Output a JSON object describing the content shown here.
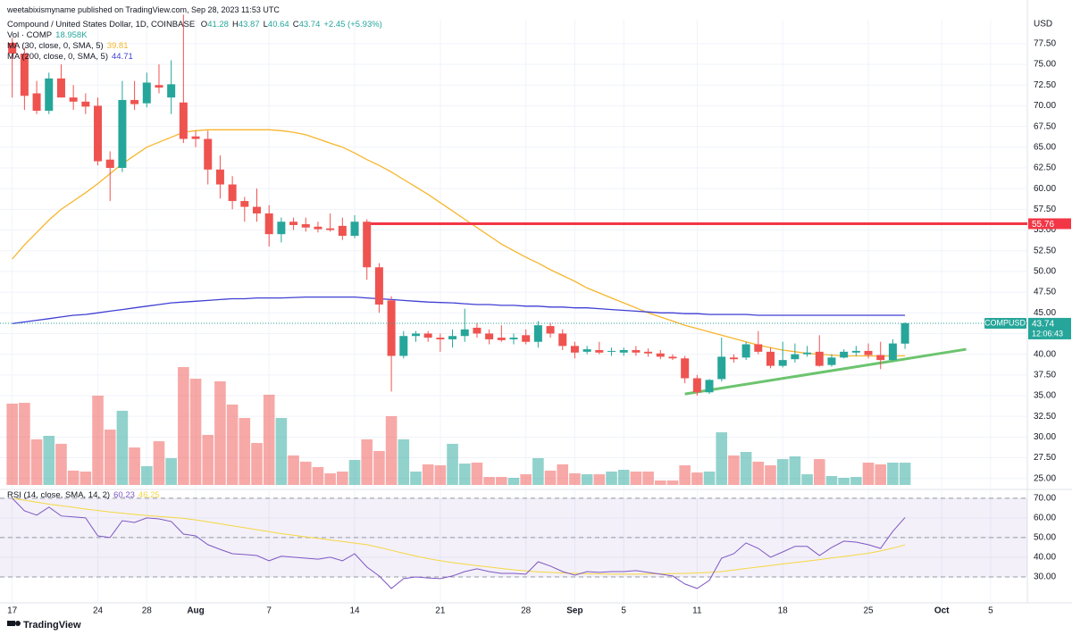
{
  "header": {
    "publisher": "weetabixismyname published on TradingView.com, Sep 28, 2023 11:53 UTC",
    "title": "Compound / United States Dollar, 1D, COINBASE",
    "ohlc": [
      {
        "label": "O",
        "value": "41.28"
      },
      {
        "label": "H",
        "value": "43.87"
      },
      {
        "label": "L",
        "value": "40.64"
      },
      {
        "label": "C",
        "value": "43.74"
      }
    ],
    "change": "+2.45 (+5.93%)"
  },
  "footer": {
    "brand": "TradingView"
  },
  "chart_data": {
    "type": "candlestick",
    "currency": "USD",
    "up_color": "#26a69a",
    "down_color": "#ef5350",
    "grid": true,
    "x": [
      "2023-07-17",
      "2023-07-18",
      "2023-07-19",
      "2023-07-20",
      "2023-07-21",
      "2023-07-22",
      "2023-07-23",
      "2023-07-24",
      "2023-07-25",
      "2023-07-26",
      "2023-07-27",
      "2023-07-28",
      "2023-07-29",
      "2023-07-30",
      "2023-07-31",
      "2023-08-01",
      "2023-08-02",
      "2023-08-03",
      "2023-08-04",
      "2023-08-05",
      "2023-08-06",
      "2023-08-07",
      "2023-08-08",
      "2023-08-09",
      "2023-08-10",
      "2023-08-11",
      "2023-08-12",
      "2023-08-13",
      "2023-08-14",
      "2023-08-15",
      "2023-08-16",
      "2023-08-17",
      "2023-08-18",
      "2023-08-19",
      "2023-08-20",
      "2023-08-21",
      "2023-08-22",
      "2023-08-23",
      "2023-08-24",
      "2023-08-25",
      "2023-08-26",
      "2023-08-27",
      "2023-08-28",
      "2023-08-29",
      "2023-08-30",
      "2023-08-31",
      "2023-09-01",
      "2023-09-02",
      "2023-09-03",
      "2023-09-04",
      "2023-09-05",
      "2023-09-06",
      "2023-09-07",
      "2023-09-08",
      "2023-09-09",
      "2023-09-10",
      "2023-09-11",
      "2023-09-12",
      "2023-09-13",
      "2023-09-14",
      "2023-09-15",
      "2023-09-16",
      "2023-09-17",
      "2023-09-18",
      "2023-09-19",
      "2023-09-20",
      "2023-09-21",
      "2023-09-22",
      "2023-09-23",
      "2023-09-24",
      "2023-09-25",
      "2023-09-26",
      "2023-09-27",
      "2023-09-28"
    ],
    "open": [
      77.6,
      76.3,
      71.5,
      69.4,
      73.3,
      71,
      70.5,
      70,
      63.5,
      62.5,
      70.7,
      70.3,
      72.5,
      71,
      70.4,
      66.3,
      66,
      62.3,
      60.5,
      58.5,
      57.8,
      57,
      54.5,
      56,
      55.7,
      55.4,
      55.2,
      55.5,
      54.3,
      56,
      50.5,
      46.5,
      39.8,
      42.2,
      42.5,
      42,
      41.8,
      42.2,
      43.2,
      42.5,
      42,
      41.8,
      42.3,
      41.5,
      43.4,
      42.5,
      41,
      40.3,
      40.5,
      40.3,
      40.2,
      40.5,
      40.3,
      40.1,
      39.7,
      39.5,
      37.1,
      35.4,
      37,
      39.6,
      39.6,
      41.2,
      40.3,
      38.6,
      39.4,
      40,
      40.3,
      38.7,
      39.6,
      40.2,
      40.4,
      39.9,
      39.3,
      41.28
    ],
    "high": [
      78.2,
      77,
      73,
      74,
      75,
      72.5,
      71.5,
      71,
      64.5,
      73,
      73,
      74,
      75,
      75.5,
      81,
      67,
      67,
      64,
      61.5,
      59,
      60,
      58,
      56.5,
      56.5,
      56.5,
      56,
      57,
      56.5,
      56.8,
      56.3,
      51,
      47,
      42.8,
      42.8,
      42.8,
      42.5,
      43,
      45.5,
      43.8,
      43,
      43.5,
      42.5,
      43,
      44,
      43.8,
      43,
      41.5,
      41,
      41.5,
      40.8,
      40.8,
      41,
      40.7,
      40.5,
      40,
      39.8,
      37.5,
      37,
      42,
      40,
      41.5,
      42.8,
      40.8,
      41.5,
      41.3,
      41,
      42.3,
      40,
      40.6,
      41,
      41.3,
      41.5,
      41.8,
      43.87
    ],
    "low": [
      71,
      69.5,
      69,
      69,
      71,
      69.5,
      69,
      62.8,
      58.5,
      62,
      69.5,
      69.8,
      71.5,
      69,
      65.5,
      65,
      60.5,
      58.8,
      57.5,
      56,
      56,
      53,
      53.5,
      55,
      54.8,
      54.7,
      54.8,
      53.8,
      54,
      49,
      45,
      35.5,
      39.5,
      41.5,
      41.5,
      40.3,
      40.8,
      41.5,
      42,
      41.2,
      41.5,
      41.2,
      41.2,
      40.8,
      42,
      40.5,
      39.5,
      40,
      40,
      39.8,
      39.8,
      39.8,
      39.7,
      39.4,
      39.3,
      36.5,
      35,
      35.2,
      36.7,
      39,
      39.3,
      40,
      38.3,
      38.4,
      39,
      39.7,
      38.5,
      38.5,
      39.5,
      39.8,
      39.5,
      38.2,
      39.2,
      40.64
    ],
    "close": [
      76.3,
      71.2,
      69.4,
      73.3,
      71,
      70.5,
      69.9,
      63.3,
      62.5,
      70.7,
      70.2,
      72.8,
      72.2,
      72.6,
      66,
      66,
      62.3,
      60.5,
      58.5,
      57.8,
      57,
      54.5,
      56,
      55.6,
      55.3,
      55.1,
      55,
      54.3,
      56,
      50.5,
      46,
      39.8,
      42.2,
      42.5,
      42,
      41.8,
      42.2,
      43,
      42.5,
      41.8,
      41.7,
      42,
      41.5,
      43.5,
      42.5,
      41,
      40.2,
      40.6,
      40.2,
      40.4,
      40.5,
      40.2,
      40.1,
      39.7,
      39.5,
      37.1,
      35.4,
      36.9,
      39.7,
      39.4,
      41.2,
      40.3,
      38.6,
      39.3,
      40,
      40.2,
      38.6,
      39.6,
      40.3,
      40.4,
      39.9,
      39.3,
      41.3,
      43.74
    ],
    "xlim": [
      "2023-07-16",
      "2023-10-08"
    ],
    "xticks": [
      {
        "value": "2023-07-17",
        "label": "17"
      },
      {
        "value": "2023-07-24",
        "label": "24"
      },
      {
        "value": "2023-07-28",
        "label": "28"
      },
      {
        "value": "2023-08-01",
        "label": "Aug"
      },
      {
        "value": "2023-08-07",
        "label": "7"
      },
      {
        "value": "2023-08-14",
        "label": "14"
      },
      {
        "value": "2023-08-21",
        "label": "21"
      },
      {
        "value": "2023-08-28",
        "label": "28"
      },
      {
        "value": "2023-09-01",
        "label": "Sep"
      },
      {
        "value": "2023-09-05",
        "label": "5"
      },
      {
        "value": "2023-09-11",
        "label": "11"
      },
      {
        "value": "2023-09-18",
        "label": "18"
      },
      {
        "value": "2023-09-25",
        "label": "25"
      },
      {
        "value": "2023-10-01",
        "label": "Oct"
      },
      {
        "value": "2023-10-05",
        "label": "5"
      }
    ],
    "ylim": [
      24,
      80.4
    ],
    "yticks": [
      {
        "value": 77.5,
        "label": "77.50"
      },
      {
        "value": 75,
        "label": "75.00"
      },
      {
        "value": 72.5,
        "label": "72.50"
      },
      {
        "value": 70,
        "label": "70.00"
      },
      {
        "value": 67.5,
        "label": "67.50"
      },
      {
        "value": 65,
        "label": "65.00"
      },
      {
        "value": 62.5,
        "label": "62.50"
      },
      {
        "value": 60,
        "label": "60.00"
      },
      {
        "value": 57.5,
        "label": "57.50"
      },
      {
        "value": 55,
        "label": "55.00"
      },
      {
        "value": 52.5,
        "label": "52.50"
      },
      {
        "value": 50,
        "label": "50.00"
      },
      {
        "value": 47.5,
        "label": "47.50"
      },
      {
        "value": 45,
        "label": "45.00"
      },
      {
        "value": 42.5,
        "label": "42.50"
      },
      {
        "value": 40,
        "label": "40.00"
      },
      {
        "value": 37.5,
        "label": "37.50"
      },
      {
        "value": 35,
        "label": "35.00"
      },
      {
        "value": 32.5,
        "label": "32.50"
      },
      {
        "value": 30,
        "label": "30.00"
      },
      {
        "value": 27.5,
        "label": "27.50"
      },
      {
        "value": 25,
        "label": "25.00"
      }
    ],
    "volume": {
      "name": "Vol · COMP",
      "last_label": "18.958K",
      "values": [
        69.2,
        69.9,
        38.8,
        41.8,
        35,
        12.2,
        11.4,
        76,
        47.1,
        63.1,
        31.9,
        16,
        37.2,
        22.8,
        100.3,
        90.4,
        42.6,
        88.2,
        68.4,
        57,
        35.7,
        76.8,
        57,
        25.1,
        19.8,
        15.2,
        9.9,
        11.4,
        21.3,
        38.8,
        28.9,
        58.5,
        38.8,
        11.4,
        17.5,
        16.7,
        35,
        18.2,
        19,
        6.8,
        6.8,
        6.1,
        9.1,
        22.8,
        12.2,
        17.5,
        9.9,
        9.1,
        9.1,
        11.4,
        12.9,
        11.4,
        11.4,
        3.8,
        3.8,
        16.7,
        10.6,
        11.4,
        44.8,
        25.1,
        28.1,
        19.8,
        16.7,
        22,
        24.3,
        9.1,
        22,
        7.6,
        6.1,
        6.8,
        19,
        17.5,
        19,
        18.958
      ]
    },
    "lines": [
      {
        "name": "MA (30, close, 0, SMA, 5)",
        "color": "#f7b52c",
        "values": [
          51.5,
          53.2,
          54.7,
          56.2,
          57.5,
          58.5,
          59.5,
          60.6,
          61.8,
          63,
          64,
          65,
          65.6,
          66.2,
          66.8,
          67,
          67.1,
          67.1,
          67.1,
          67.1,
          67.1,
          67.1,
          67,
          66.8,
          66.5,
          66,
          65.5,
          65,
          64.3,
          63.5,
          62.8,
          62,
          61.1,
          60.2,
          59.3,
          58.3,
          57.3,
          56.3,
          55.3,
          54.3,
          53.3,
          52.5,
          51.7,
          51,
          50.2,
          49.5,
          48.8,
          48,
          47.4,
          46.8,
          46.2,
          45.6,
          45,
          44.5,
          44,
          43.5,
          43.1,
          42.7,
          42.3,
          41.9,
          41.5,
          41.1,
          40.8,
          40.5,
          40.3,
          40.1,
          40,
          39.9,
          39.8,
          39.8,
          39.8,
          39.8,
          39.8,
          39.81
        ]
      },
      {
        "name": "MA (200, close, 0, SMA, 5)",
        "color": "#3f3fd4",
        "values": [
          43.7,
          43.9,
          44.1,
          44.3,
          44.5,
          44.7,
          44.8,
          45,
          45.2,
          45.4,
          45.6,
          45.8,
          46,
          46.2,
          46.3,
          46.4,
          46.5,
          46.6,
          46.7,
          46.7,
          46.8,
          46.8,
          46.8,
          46.85,
          46.9,
          46.9,
          46.9,
          46.9,
          46.9,
          46.8,
          46.7,
          46.6,
          46.5,
          46.4,
          46.3,
          46.25,
          46.2,
          46.1,
          46,
          46,
          45.9,
          45.9,
          45.8,
          45.8,
          45.7,
          45.7,
          45.6,
          45.6,
          45.5,
          45.4,
          45.3,
          45.2,
          45.1,
          45,
          45,
          44.9,
          44.9,
          44.8,
          44.8,
          44.8,
          44.8,
          44.7,
          44.7,
          44.7,
          44.7,
          44.7,
          44.7,
          44.7,
          44.7,
          44.7,
          44.7,
          44.7,
          44.7,
          44.71
        ]
      }
    ],
    "hline": {
      "value": 55.76,
      "from": "2023-08-15",
      "color": "#f23645"
    },
    "trendline": {
      "color": "#6cc46f",
      "points": [
        {
          "x": "2023-09-10",
          "y": 35.2
        },
        {
          "x": "2023-10-03",
          "y": 40.6
        }
      ]
    },
    "last_price": {
      "symbol": "COMPUSD",
      "countdown": "12:06:43"
    },
    "rsi": {
      "title": "RSI (14, close, SMA, 14, 2)",
      "ylim": [
        16.8,
        73.6
      ],
      "levels": [
        70,
        50,
        30
      ],
      "band_color": "#7e57c2",
      "yticks": [
        {
          "value": 70,
          "label": "70.00"
        },
        {
          "value": 60,
          "label": "60.00"
        },
        {
          "value": 50,
          "label": "50.00"
        },
        {
          "value": 40,
          "label": "40.00"
        },
        {
          "value": 30,
          "label": "30.00"
        }
      ],
      "series": [
        {
          "color": "#7e57c2",
          "values": [
            70,
            63.6,
            61.4,
            65.5,
            61,
            60.5,
            60,
            50.9,
            50,
            58.6,
            57.7,
            60,
            59.5,
            58.2,
            51.8,
            50.9,
            46.4,
            44,
            41.8,
            41.4,
            40.9,
            38.2,
            40.5,
            40,
            39.5,
            39,
            40,
            38.2,
            41.8,
            35,
            30.5,
            24.1,
            29.1,
            30,
            29.5,
            29.1,
            30.5,
            32.7,
            34.1,
            32.7,
            31.8,
            31.8,
            31.4,
            37.7,
            35.5,
            32.7,
            30.9,
            32.7,
            32.3,
            32.7,
            32.7,
            33.2,
            32.3,
            31.4,
            30.5,
            26.4,
            24.1,
            28.2,
            39.5,
            41.8,
            47.3,
            44.5,
            40,
            42.7,
            45.5,
            45.5,
            40.9,
            45,
            48.2,
            47.7,
            46.4,
            44.5,
            53.2,
            60.23
          ]
        },
        {
          "color": "#f5d742",
          "values": [
            70,
            69,
            68,
            67,
            66.2,
            65.4,
            64.5,
            63.8,
            63,
            62.4,
            61.8,
            61.2,
            60.8,
            60.3,
            59.8,
            59,
            58,
            57,
            56,
            55,
            54,
            53,
            52,
            51.2,
            50.4,
            49.6,
            48.8,
            48,
            47.2,
            46.4,
            45,
            43.5,
            42,
            40.6,
            39.3,
            38.2,
            37.3,
            36.5,
            35.7,
            35,
            34.3,
            33.6,
            33,
            32.6,
            32.3,
            32,
            31.8,
            31.6,
            31.5,
            31.4,
            31.4,
            31.4,
            31.5,
            31.6,
            31.7,
            31.8,
            32,
            32.3,
            32.7,
            33.5,
            34.3,
            35,
            35.8,
            36.6,
            37.3,
            38,
            38.8,
            39.6,
            40.4,
            41.2,
            42,
            43.2,
            44.6,
            46.25
          ]
        }
      ]
    }
  }
}
